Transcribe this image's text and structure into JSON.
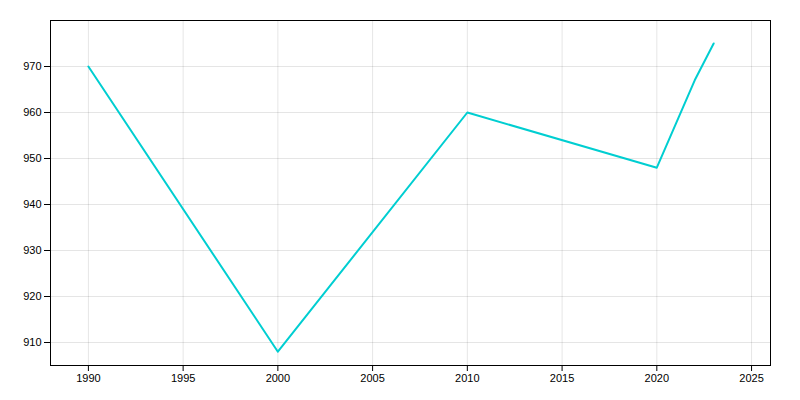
{
  "chart_data": {
    "type": "line",
    "x": [
      1990,
      2000,
      2010,
      2020,
      2022,
      2023
    ],
    "values": [
      970,
      908,
      960,
      948,
      967,
      975
    ],
    "color": "#00CED1",
    "xlim": [
      1988,
      2026
    ],
    "ylim": [
      905,
      980
    ],
    "xticks": [
      1990,
      1995,
      2000,
      2005,
      2010,
      2015,
      2020,
      2025
    ],
    "yticks": [
      910,
      920,
      930,
      940,
      950,
      960,
      970
    ],
    "grid": true
  }
}
